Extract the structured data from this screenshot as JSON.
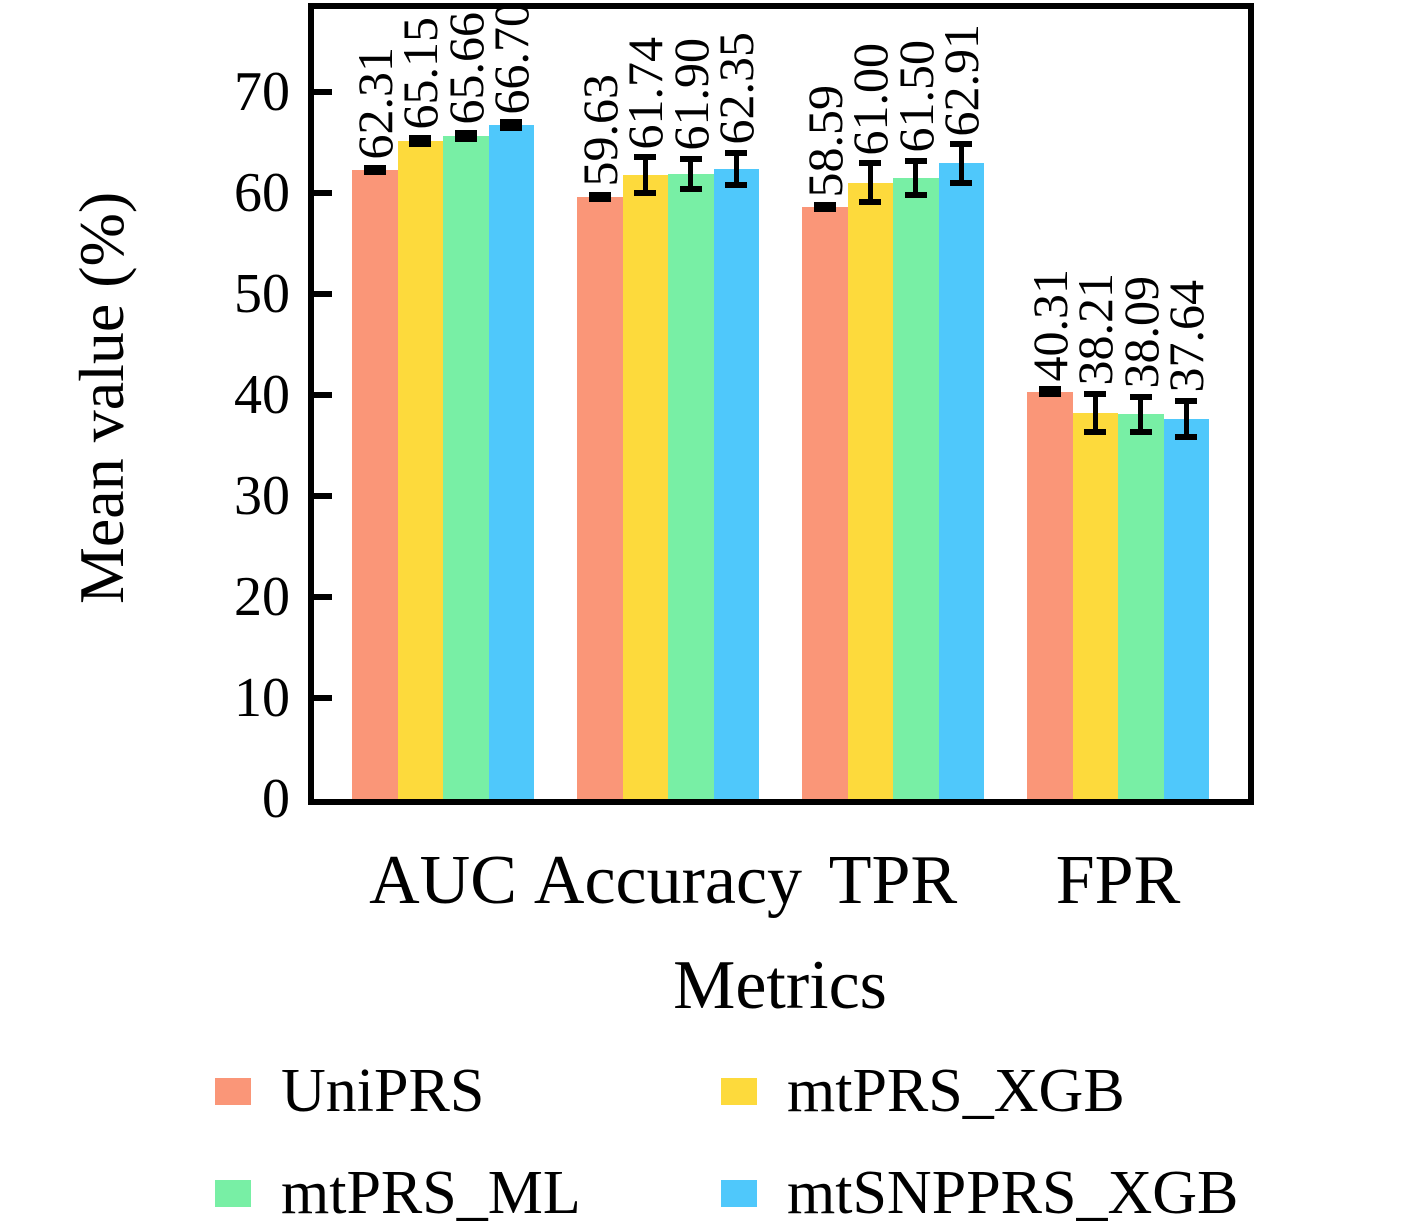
{
  "chart_data": {
    "type": "bar",
    "title": "",
    "xlabel": "Metrics",
    "ylabel": "Mean value (%)",
    "categories": [
      "AUC",
      "Accuracy",
      "TPR",
      "FPR"
    ],
    "series": [
      {
        "name": "UniPRS",
        "color": "#FA9678",
        "values": [
          62.31,
          59.63,
          58.59,
          40.31
        ],
        "errors": [
          0.2,
          0.2,
          0.2,
          0.25
        ]
      },
      {
        "name": "mtPRS_XGB",
        "color": "#FDDA3C",
        "values": [
          65.15,
          61.74,
          61.0,
          38.21
        ],
        "errors": [
          0.3,
          1.8,
          1.95,
          1.9
        ]
      },
      {
        "name": "mtPRS_ML",
        "color": "#78EFA5",
        "values": [
          65.66,
          61.9,
          61.5,
          38.09
        ],
        "errors": [
          0.3,
          1.5,
          1.7,
          1.75
        ]
      },
      {
        "name": "mtSNPPRS_XGB",
        "color": "#4FC8FB",
        "values": [
          66.7,
          62.35,
          62.91,
          37.64
        ],
        "errors": [
          0.3,
          1.6,
          1.9,
          1.8
        ]
      }
    ],
    "bar_value_labels": [
      "62.31",
      "65.15",
      "65.66",
      "66.70",
      "59.63",
      "61.74",
      "61.90",
      "62.35",
      "58.59",
      "61.00",
      "61.50",
      "62.91",
      "40.31",
      "38.21",
      "38.09",
      "37.64"
    ],
    "y_ticks": [
      0,
      10,
      20,
      30,
      40,
      50,
      60,
      70
    ],
    "ylim": [
      0,
      78.2
    ],
    "grid": false,
    "legend_position": "bottom",
    "axis_color": "#000000",
    "label_color": "#000000"
  }
}
